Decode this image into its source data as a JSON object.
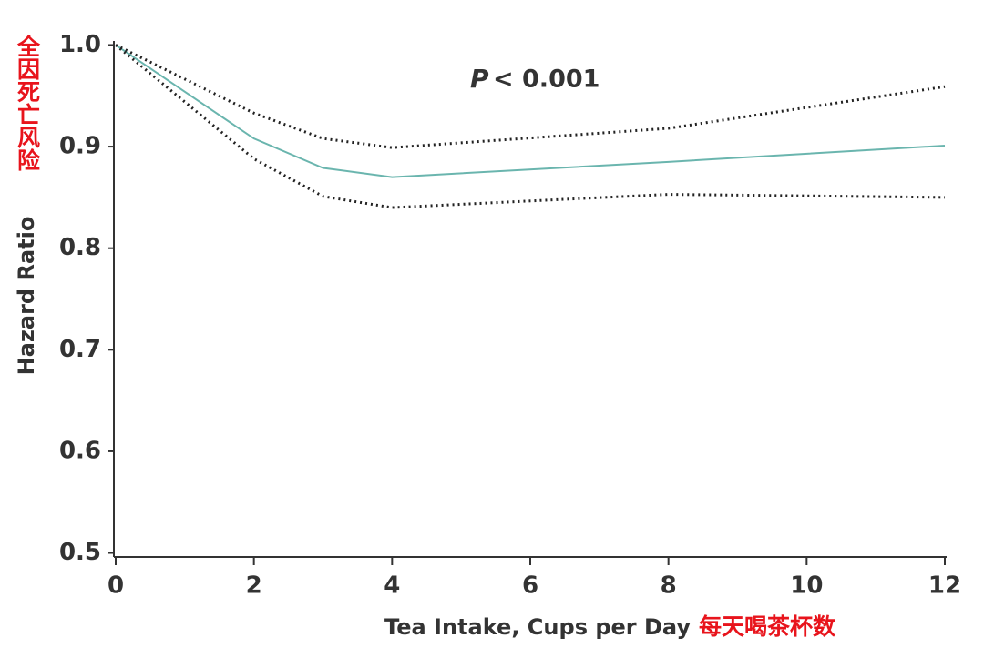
{
  "chart_data": {
    "type": "line",
    "y_label": "Hazard Ratio",
    "y_label_note": "全因死亡风险",
    "x_label": "Tea Intake, Cups per Day",
    "x_label_note": "每天喝茶杯数",
    "annotation_p": "P",
    "annotation_value": "< 0.001",
    "x": [
      0,
      2,
      3,
      4,
      8,
      12
    ],
    "series": [
      {
        "color": "#6ab5ae",
        "style": "solid",
        "values": [
          1.0,
          0.908,
          0.879,
          0.87,
          0.885,
          0.901
        ]
      },
      {
        "color": "#222222",
        "style": "dotted",
        "values": [
          1.0,
          0.933,
          0.908,
          0.899,
          0.918,
          0.959
        ]
      },
      {
        "color": "#222222",
        "style": "dotted",
        "values": [
          1.0,
          0.888,
          0.851,
          0.84,
          0.853,
          0.85
        ]
      }
    ],
    "xlim": [
      0,
      12
    ],
    "xticks": [
      0,
      2,
      4,
      6,
      8,
      10,
      12
    ],
    "ylim": [
      0.496,
      1.004
    ],
    "yticks": [
      0.5,
      0.6,
      0.7,
      0.8,
      0.9,
      {
        "value": 1,
        "label": "1.0"
      }
    ],
    "grid": false
  }
}
